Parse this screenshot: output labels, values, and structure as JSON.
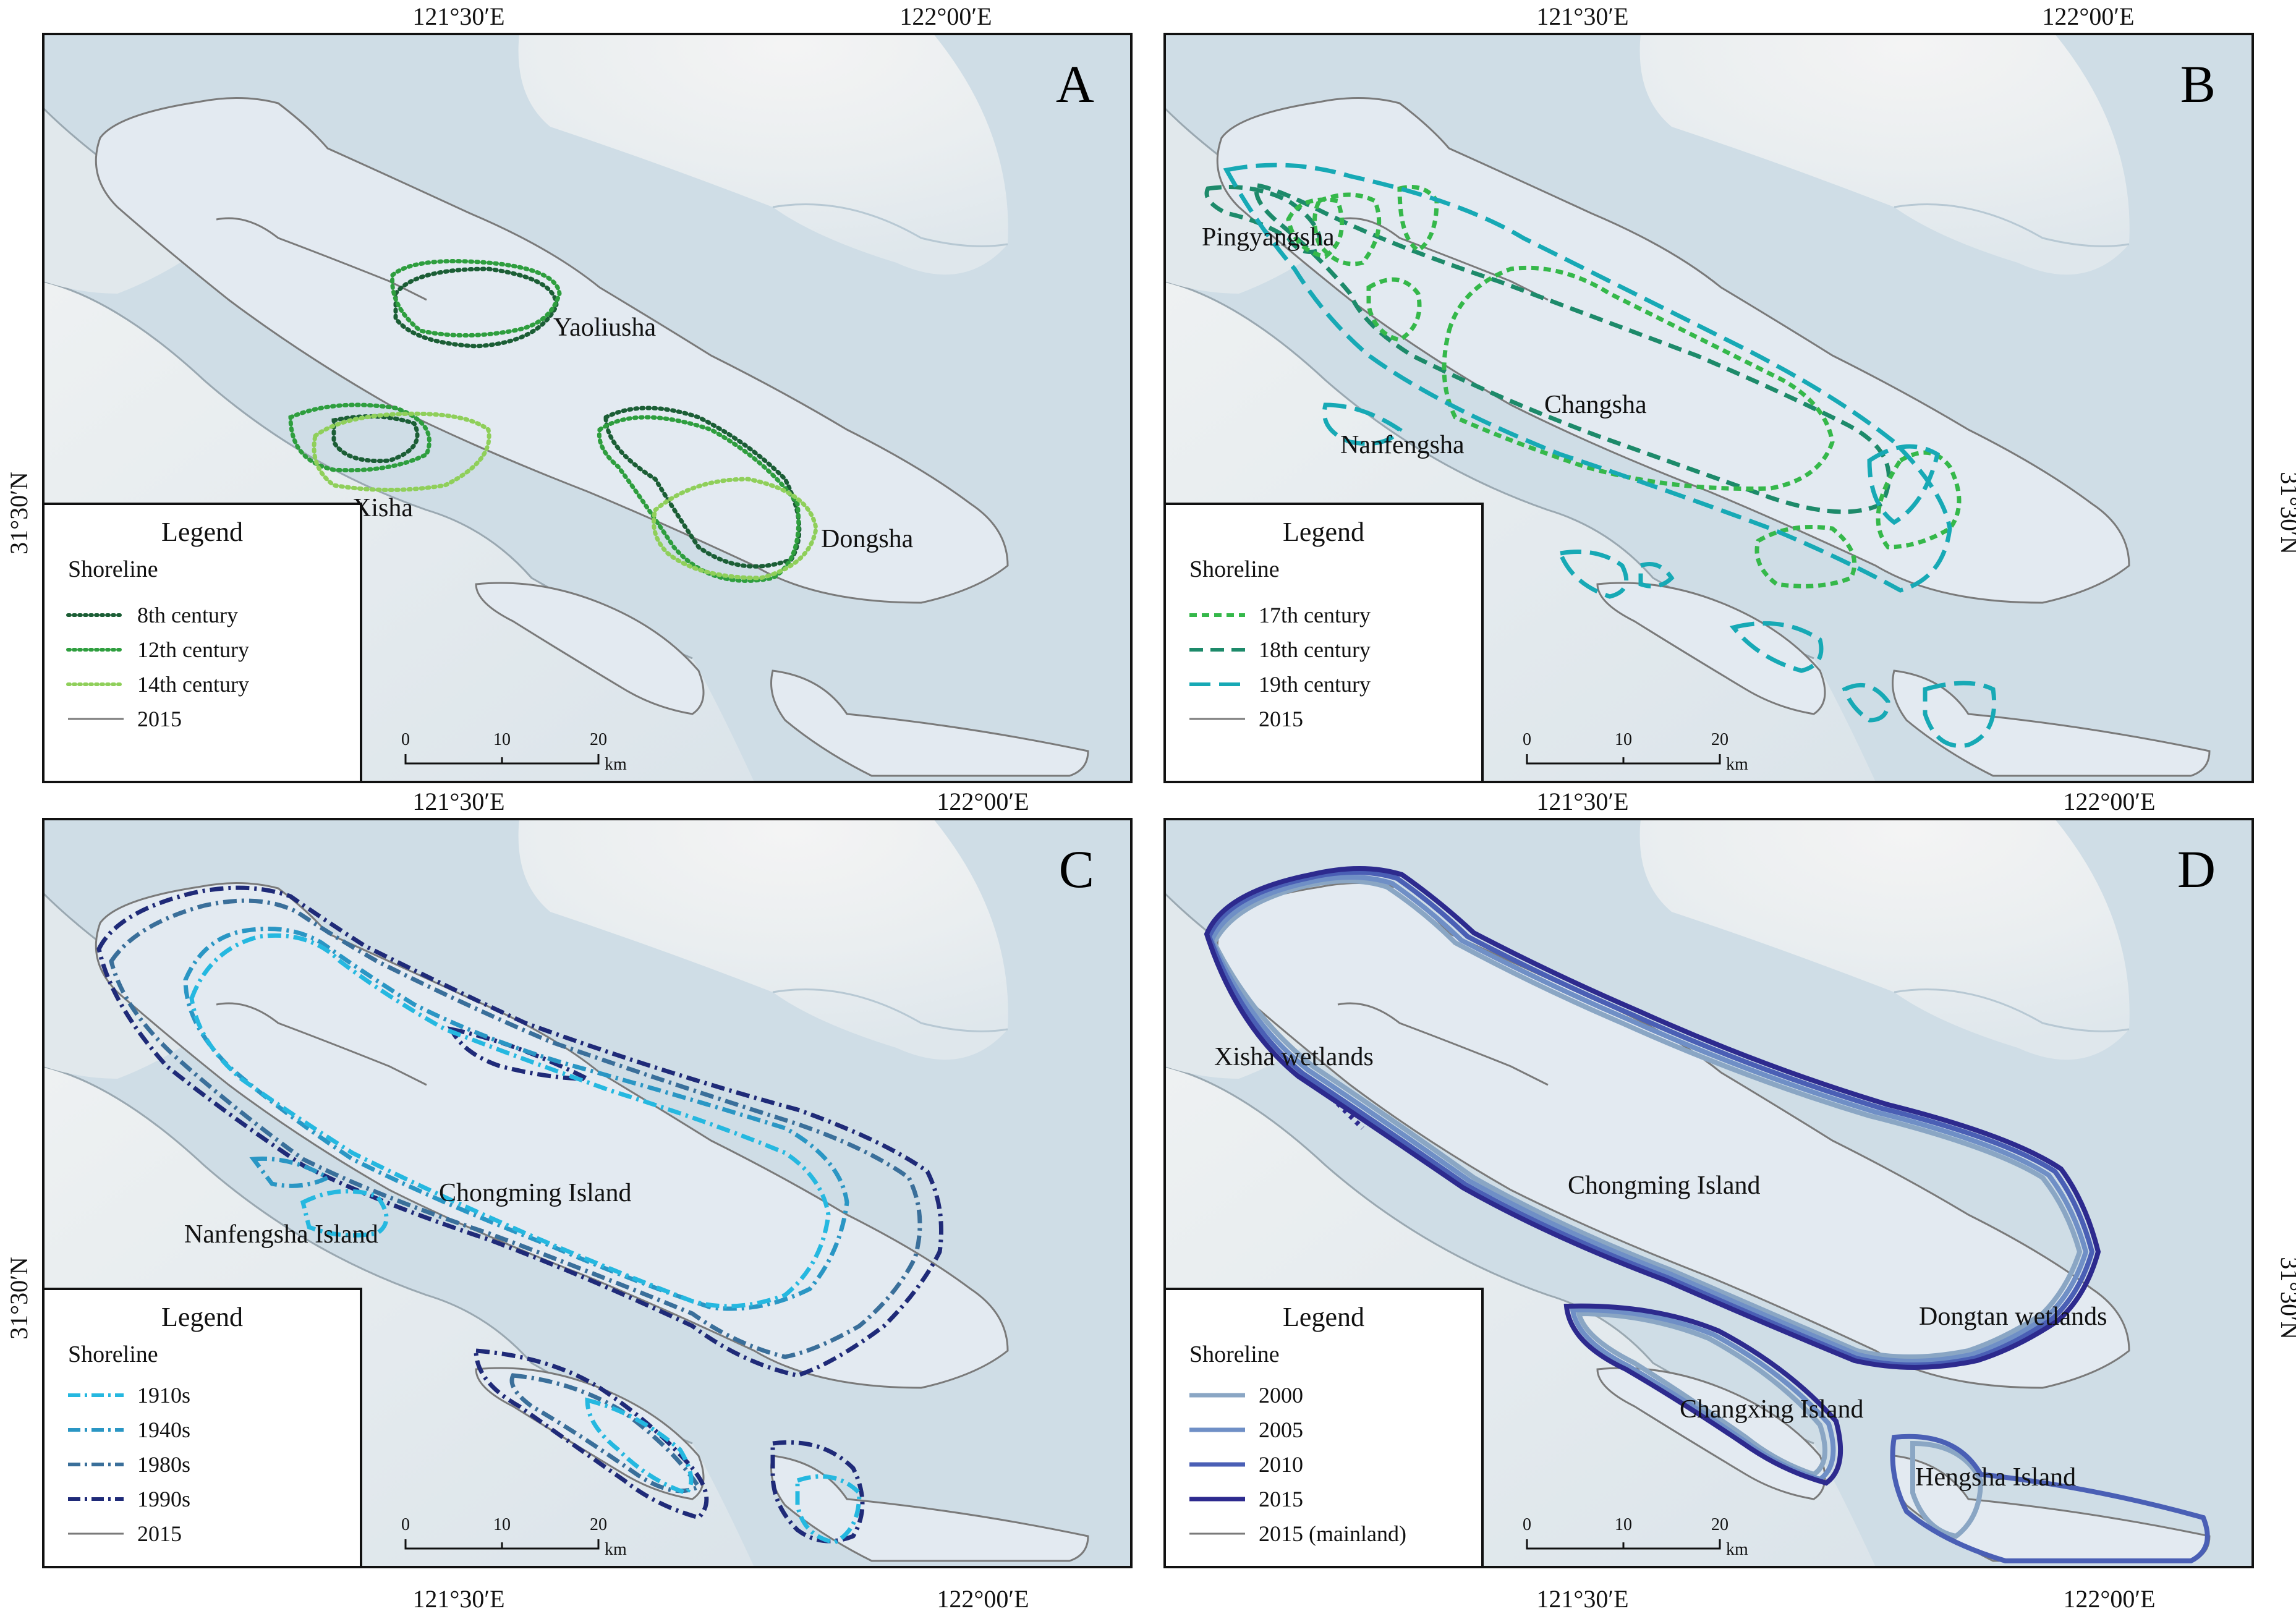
{
  "coords": {
    "top_left": "121°30′E",
    "top_right": "122°00′E",
    "bottom_left": "121°30′E",
    "bottom_right": "122°00′E",
    "lat_left": "31°30′N",
    "lat_right": "31°30′N"
  },
  "scale": {
    "t0": "0",
    "t1": "10",
    "t2": "20",
    "unit": "km"
  },
  "colors": {
    "water": "#cfdde6",
    "land": "#e8edf0",
    "island_fill": "#e3eaf1",
    "outline_2015": "#7a7a7a"
  },
  "panels": [
    {
      "id": "A",
      "label": "A",
      "places": [
        "Yaoliusha",
        "Xisha",
        "Dongsha"
      ],
      "legend": {
        "title": "Legend",
        "subtitle": "Shoreline",
        "items": [
          {
            "label": "8th century",
            "color": "#1b5e35",
            "style": "dotted"
          },
          {
            "label": "12th century",
            "color": "#2e9e3e",
            "style": "dotted"
          },
          {
            "label": "14th century",
            "color": "#8fcf5a",
            "style": "dotted"
          },
          {
            "label": "2015",
            "color": "#7a7a7a",
            "style": "solid"
          }
        ]
      }
    },
    {
      "id": "B",
      "label": "B",
      "places": [
        "Pingyangsha",
        "Changsha",
        "Nanfengsha"
      ],
      "legend": {
        "title": "Legend",
        "subtitle": "Shoreline",
        "items": [
          {
            "label": "17th century",
            "color": "#35b84a",
            "style": "dashed-short"
          },
          {
            "label": "18th century",
            "color": "#1d8a6a",
            "style": "dashed"
          },
          {
            "label": "19th century",
            "color": "#17a9b5",
            "style": "dashed-long"
          },
          {
            "label": "2015",
            "color": "#7a7a7a",
            "style": "solid"
          }
        ]
      }
    },
    {
      "id": "C",
      "label": "C",
      "places": [
        "Chongming Island",
        "Nanfengsha Island"
      ],
      "legend": {
        "title": "Legend",
        "subtitle": "Shoreline",
        "items": [
          {
            "label": "1910s",
            "color": "#25b8e0",
            "style": "dashdot"
          },
          {
            "label": "1940s",
            "color": "#2a96c4",
            "style": "dashdot"
          },
          {
            "label": "1980s",
            "color": "#3a6f9a",
            "style": "dashdot"
          },
          {
            "label": "1990s",
            "color": "#1f2a78",
            "style": "dashdot"
          },
          {
            "label": "2015",
            "color": "#7a7a7a",
            "style": "solid"
          }
        ]
      }
    },
    {
      "id": "D",
      "label": "D",
      "places": [
        "Xisha wetlands",
        "Chongming Island",
        "Dongtan wetlands",
        "Changxing Island",
        "Hengsha Island"
      ],
      "legend": {
        "title": "Legend",
        "subtitle": "Shoreline",
        "items": [
          {
            "label": "2000",
            "color": "#8aa6c4",
            "style": "solid"
          },
          {
            "label": "2005",
            "color": "#6f8fc6",
            "style": "solid"
          },
          {
            "label": "2010",
            "color": "#4a5fb5",
            "style": "solid"
          },
          {
            "label": "2015",
            "color": "#2d2a8e",
            "style": "solid"
          },
          {
            "label": "2015 (mainland)",
            "color": "#7a7a7a",
            "style": "solid"
          }
        ]
      }
    }
  ]
}
